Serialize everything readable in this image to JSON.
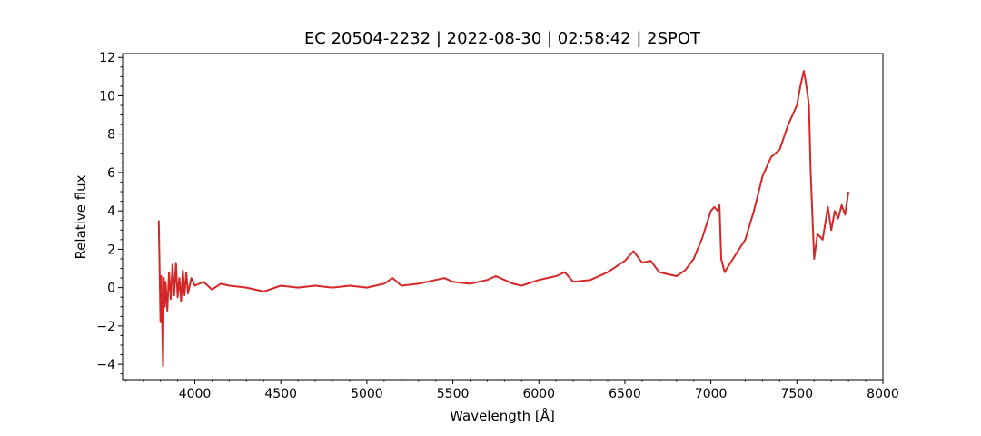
{
  "chart_data": {
    "type": "line",
    "title": "EC 20504-2232 | 2022-08-30 | 02:58:42 | 2SPOT",
    "xlabel": "Wavelength [Å]",
    "ylabel": "Relative flux",
    "xlim": [
      3580,
      8000
    ],
    "ylim": [
      -4.8,
      12.2
    ],
    "xticks": [
      4000,
      4500,
      5000,
      5500,
      6000,
      6500,
      7000,
      7500,
      8000
    ],
    "xtick_labels": [
      "4000",
      "4500",
      "5000",
      "5500",
      "6000",
      "6500",
      "7000",
      "7500",
      "8000"
    ],
    "yticks": [
      -4,
      -2,
      0,
      2,
      4,
      6,
      8,
      10,
      12
    ],
    "ytick_labels": [
      "−4",
      "−2",
      "0",
      "2",
      "4",
      "6",
      "8",
      "10",
      "12"
    ],
    "grid": false,
    "series": [
      {
        "color": "#d62728",
        "x": [
          3790,
          3800,
          3805,
          3810,
          3815,
          3820,
          3825,
          3830,
          3840,
          3850,
          3860,
          3870,
          3880,
          3890,
          3900,
          3910,
          3920,
          3930,
          3940,
          3950,
          3960,
          3980,
          4000,
          4050,
          4100,
          4150,
          4200,
          4300,
          4400,
          4500,
          4600,
          4700,
          4800,
          4900,
          5000,
          5100,
          5150,
          5200,
          5300,
          5400,
          5450,
          5500,
          5600,
          5700,
          5750,
          5800,
          5850,
          5900,
          6000,
          6100,
          6150,
          6200,
          6300,
          6400,
          6500,
          6550,
          6600,
          6650,
          6700,
          6750,
          6800,
          6850,
          6900,
          6950,
          7000,
          7020,
          7040,
          7050,
          7060,
          7080,
          7100,
          7150,
          7200,
          7250,
          7300,
          7350,
          7400,
          7450,
          7500,
          7520,
          7540,
          7550,
          7560,
          7570,
          7580,
          7600,
          7620,
          7650,
          7680,
          7700,
          7720,
          7740,
          7760,
          7780,
          7800
        ],
        "values": [
          3.5,
          -1.8,
          0.6,
          -2.0,
          -4.1,
          0.5,
          -1.0,
          0.3,
          -1.2,
          0.8,
          -0.6,
          1.2,
          -0.4,
          1.3,
          -0.5,
          0.5,
          -0.7,
          0.9,
          -0.4,
          0.8,
          -0.3,
          0.5,
          0.1,
          0.3,
          -0.1,
          0.2,
          0.1,
          0.0,
          -0.2,
          0.1,
          0.0,
          0.1,
          0.0,
          0.1,
          0.0,
          0.2,
          0.5,
          0.1,
          0.2,
          0.4,
          0.5,
          0.3,
          0.2,
          0.4,
          0.6,
          0.4,
          0.2,
          0.1,
          0.4,
          0.6,
          0.8,
          0.3,
          0.4,
          0.8,
          1.4,
          1.9,
          1.3,
          1.4,
          0.8,
          0.7,
          0.6,
          0.9,
          1.5,
          2.6,
          4.0,
          4.2,
          4.0,
          4.3,
          1.5,
          0.8,
          1.1,
          1.8,
          2.5,
          4.0,
          5.8,
          6.8,
          7.2,
          8.5,
          9.5,
          10.5,
          11.3,
          10.8,
          10.2,
          9.5,
          6.0,
          1.5,
          2.8,
          2.5,
          4.2,
          3.0,
          4.0,
          3.6,
          4.3,
          3.8,
          5.0
        ]
      }
    ]
  }
}
